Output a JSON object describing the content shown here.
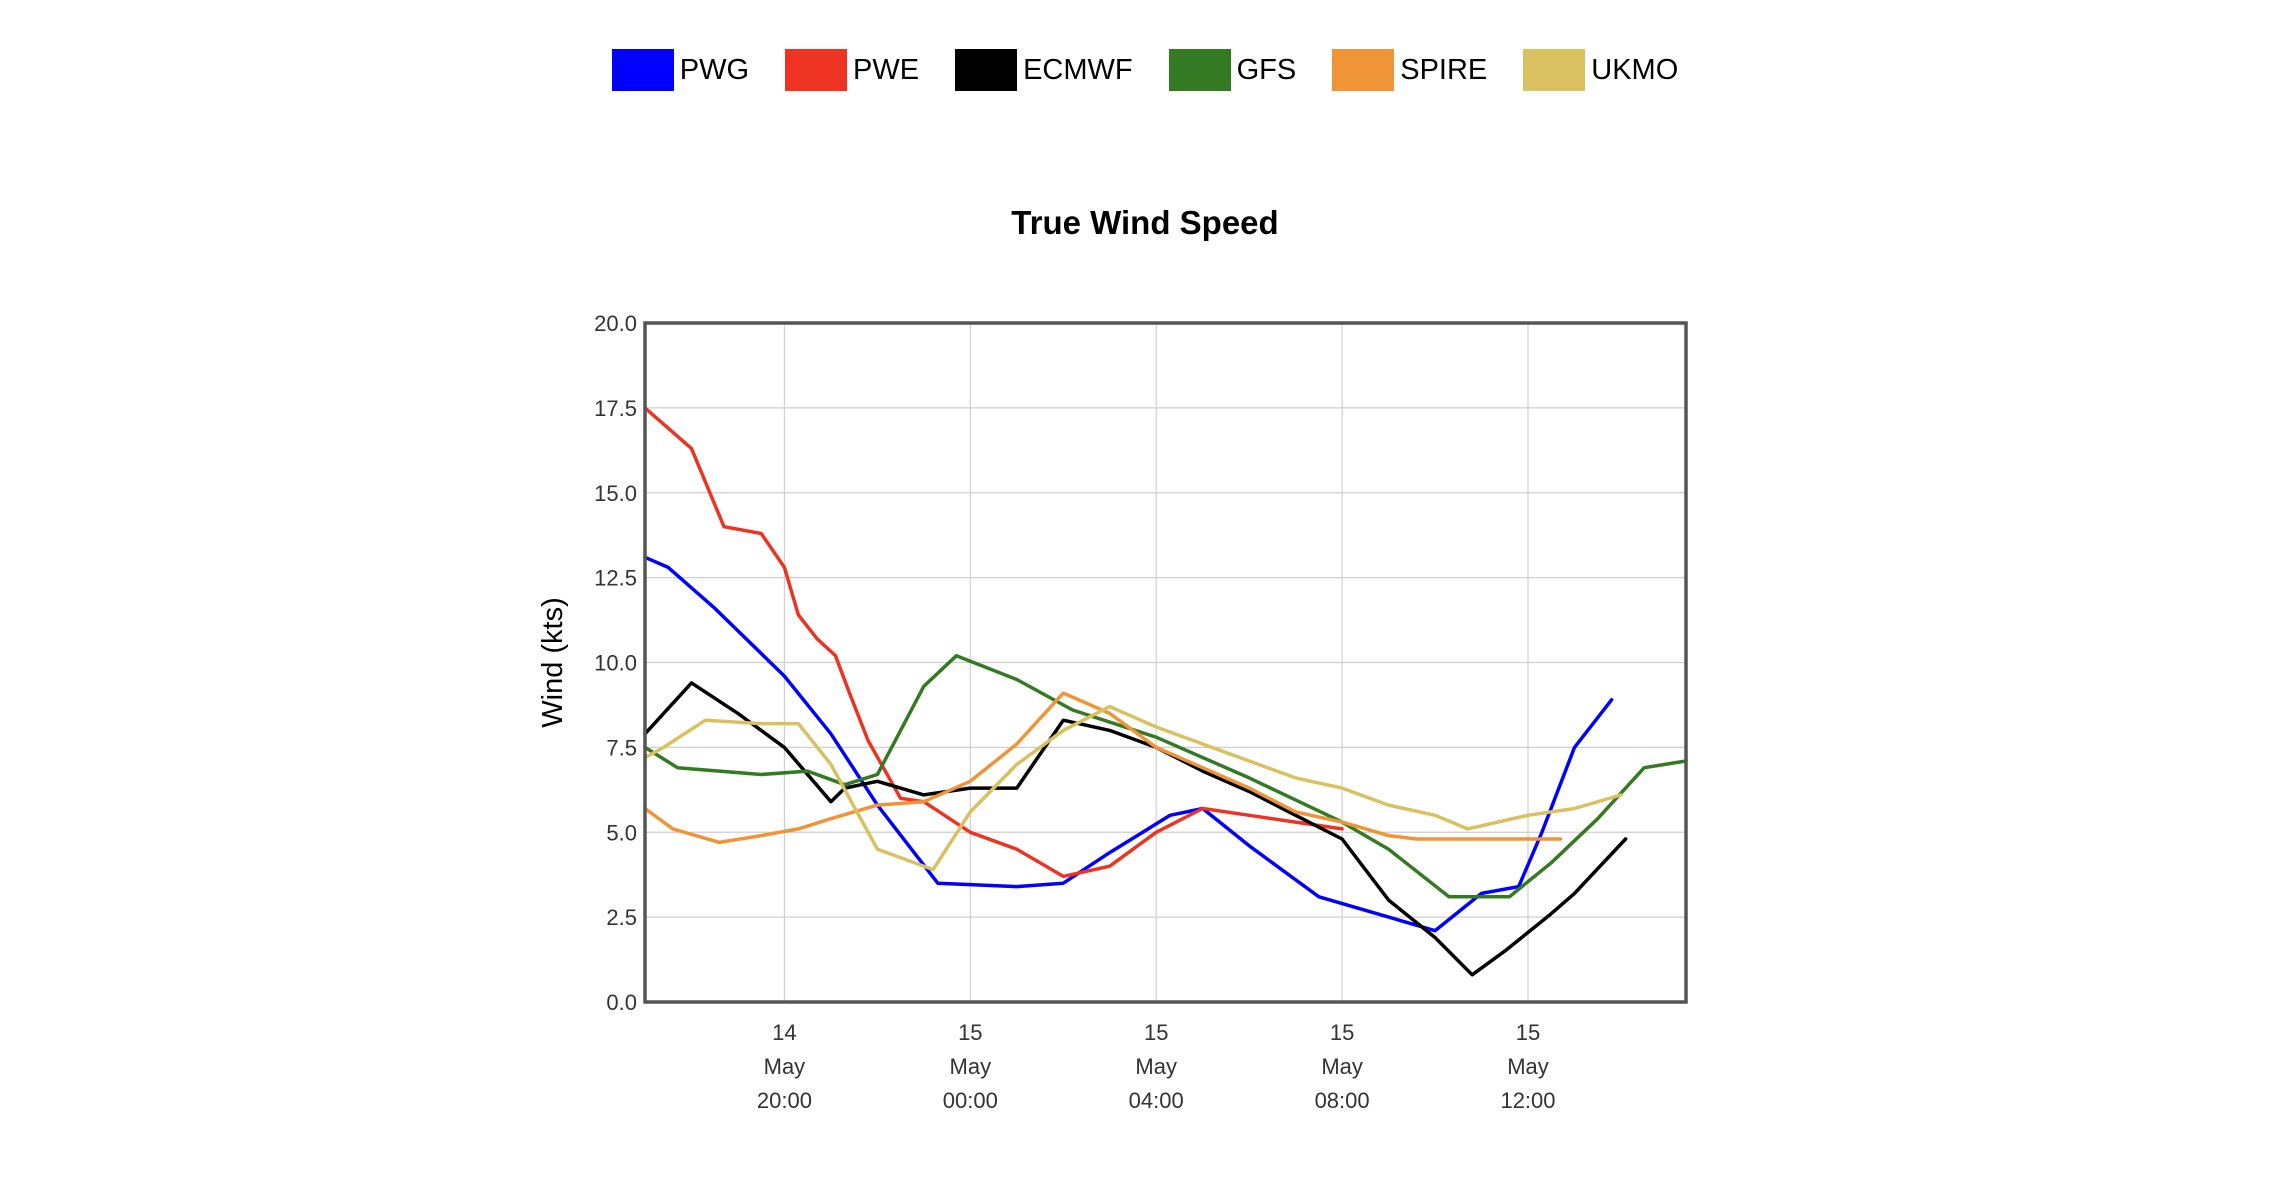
{
  "chart_data": {
    "type": "line",
    "title": "True Wind Speed",
    "ylabel": "Wind (kts)",
    "xlabel": "",
    "ylim": [
      0,
      20
    ],
    "xlim": [
      -3,
      19.4
    ],
    "grid": true,
    "legend_position": "top-center",
    "y_ticks": [
      "0.0",
      "2.5",
      "5.0",
      "7.5",
      "10.0",
      "12.5",
      "15.0",
      "17.5",
      "20.0"
    ],
    "x_ticks": [
      {
        "x": 0,
        "lines": [
          "14",
          "May",
          "20:00"
        ]
      },
      {
        "x": 4,
        "lines": [
          "15",
          "May",
          "00:00"
        ]
      },
      {
        "x": 8,
        "lines": [
          "15",
          "May",
          "04:00"
        ]
      },
      {
        "x": 12,
        "lines": [
          "15",
          "May",
          "08:00"
        ]
      },
      {
        "x": 16,
        "lines": [
          "15",
          "May",
          "12:00"
        ]
      }
    ],
    "series": [
      {
        "name": "PWG",
        "color": "#0000ff",
        "points": [
          [
            -3,
            13.1
          ],
          [
            -2.5,
            12.8
          ],
          [
            -1.5,
            11.6
          ],
          [
            0,
            9.6
          ],
          [
            1,
            7.9
          ],
          [
            2,
            5.8
          ],
          [
            3.3,
            3.5
          ],
          [
            5,
            3.4
          ],
          [
            6,
            3.5
          ],
          [
            7,
            4.4
          ],
          [
            8.3,
            5.5
          ],
          [
            9,
            5.7
          ],
          [
            10,
            4.6
          ],
          [
            11.5,
            3.1
          ],
          [
            13,
            2.5
          ],
          [
            14,
            2.1
          ],
          [
            15,
            3.2
          ],
          [
            15.8,
            3.4
          ],
          [
            16.3,
            5.0
          ],
          [
            17,
            7.5
          ],
          [
            17.8,
            8.9
          ]
        ]
      },
      {
        "name": "PWE",
        "color": "#ee3322",
        "points": [
          [
            -3,
            17.5
          ],
          [
            -2,
            16.3
          ],
          [
            -1.3,
            14.0
          ],
          [
            -0.5,
            13.8
          ],
          [
            0,
            12.8
          ],
          [
            0.3,
            11.4
          ],
          [
            0.7,
            10.7
          ],
          [
            1.1,
            10.2
          ],
          [
            1.4,
            9.1
          ],
          [
            1.8,
            7.7
          ],
          [
            2.5,
            6.0
          ],
          [
            3,
            5.9
          ],
          [
            4,
            5.0
          ],
          [
            5,
            4.5
          ],
          [
            6,
            3.7
          ],
          [
            7,
            4.0
          ],
          [
            8,
            5.0
          ],
          [
            9,
            5.7
          ],
          [
            10,
            5.5
          ],
          [
            11,
            5.3
          ],
          [
            12,
            5.1
          ]
        ]
      },
      {
        "name": "ECMWF",
        "color": "#000000",
        "points": [
          [
            -3,
            7.9
          ],
          [
            -2,
            9.4
          ],
          [
            -1,
            8.5
          ],
          [
            0,
            7.5
          ],
          [
            1,
            5.9
          ],
          [
            1.3,
            6.3
          ],
          [
            2,
            6.5
          ],
          [
            3,
            6.1
          ],
          [
            4,
            6.3
          ],
          [
            5,
            6.3
          ],
          [
            6,
            8.3
          ],
          [
            7,
            8.0
          ],
          [
            8,
            7.5
          ],
          [
            9,
            6.8
          ],
          [
            10,
            6.2
          ],
          [
            11,
            5.5
          ],
          [
            12,
            4.8
          ],
          [
            13,
            3.0
          ],
          [
            14,
            1.9
          ],
          [
            14.8,
            0.8
          ],
          [
            15.5,
            1.5
          ],
          [
            16.5,
            2.6
          ],
          [
            17,
            3.2
          ],
          [
            18.1,
            4.8
          ]
        ]
      },
      {
        "name": "GFS",
        "color": "#337a22",
        "points": [
          [
            -3,
            7.5
          ],
          [
            -2.3,
            6.9
          ],
          [
            -0.5,
            6.7
          ],
          [
            0.5,
            6.8
          ],
          [
            1.3,
            6.4
          ],
          [
            2,
            6.7
          ],
          [
            3,
            9.3
          ],
          [
            3.7,
            10.2
          ],
          [
            5,
            9.5
          ],
          [
            6.2,
            8.6
          ],
          [
            8,
            7.8
          ],
          [
            10,
            6.6
          ],
          [
            12,
            5.3
          ],
          [
            13,
            4.5
          ],
          [
            14.3,
            3.1
          ],
          [
            15.6,
            3.1
          ],
          [
            16.5,
            4.1
          ],
          [
            17.5,
            5.4
          ],
          [
            18.5,
            6.9
          ],
          [
            19.4,
            7.1
          ]
        ]
      },
      {
        "name": "SPIRE",
        "color": "#f09438",
        "points": [
          [
            -3,
            5.7
          ],
          [
            -2.4,
            5.1
          ],
          [
            -1.4,
            4.7
          ],
          [
            -0.5,
            4.9
          ],
          [
            0.3,
            5.1
          ],
          [
            1,
            5.4
          ],
          [
            2,
            5.8
          ],
          [
            3,
            5.9
          ],
          [
            4,
            6.5
          ],
          [
            5,
            7.6
          ],
          [
            6,
            9.1
          ],
          [
            7,
            8.5
          ],
          [
            8,
            7.5
          ],
          [
            9,
            6.9
          ],
          [
            10,
            6.3
          ],
          [
            11,
            5.6
          ],
          [
            12,
            5.3
          ],
          [
            13,
            4.9
          ],
          [
            13.6,
            4.8
          ],
          [
            15,
            4.8
          ],
          [
            16,
            4.8
          ],
          [
            16.7,
            4.8
          ]
        ]
      },
      {
        "name": "UKMO",
        "color": "#d9c060",
        "points": [
          [
            -3,
            7.2
          ],
          [
            -2.6,
            7.5
          ],
          [
            -1.7,
            8.3
          ],
          [
            -0.5,
            8.2
          ],
          [
            0.3,
            8.2
          ],
          [
            1,
            7.0
          ],
          [
            2,
            4.5
          ],
          [
            3.2,
            3.9
          ],
          [
            4,
            5.6
          ],
          [
            5,
            7.0
          ],
          [
            6,
            8.0
          ],
          [
            7,
            8.7
          ],
          [
            8,
            8.1
          ],
          [
            9,
            7.6
          ],
          [
            10,
            7.1
          ],
          [
            11,
            6.6
          ],
          [
            12,
            6.3
          ],
          [
            13,
            5.8
          ],
          [
            14,
            5.5
          ],
          [
            14.7,
            5.1
          ],
          [
            16,
            5.5
          ],
          [
            17,
            5.7
          ],
          [
            18,
            6.1
          ]
        ]
      }
    ]
  }
}
